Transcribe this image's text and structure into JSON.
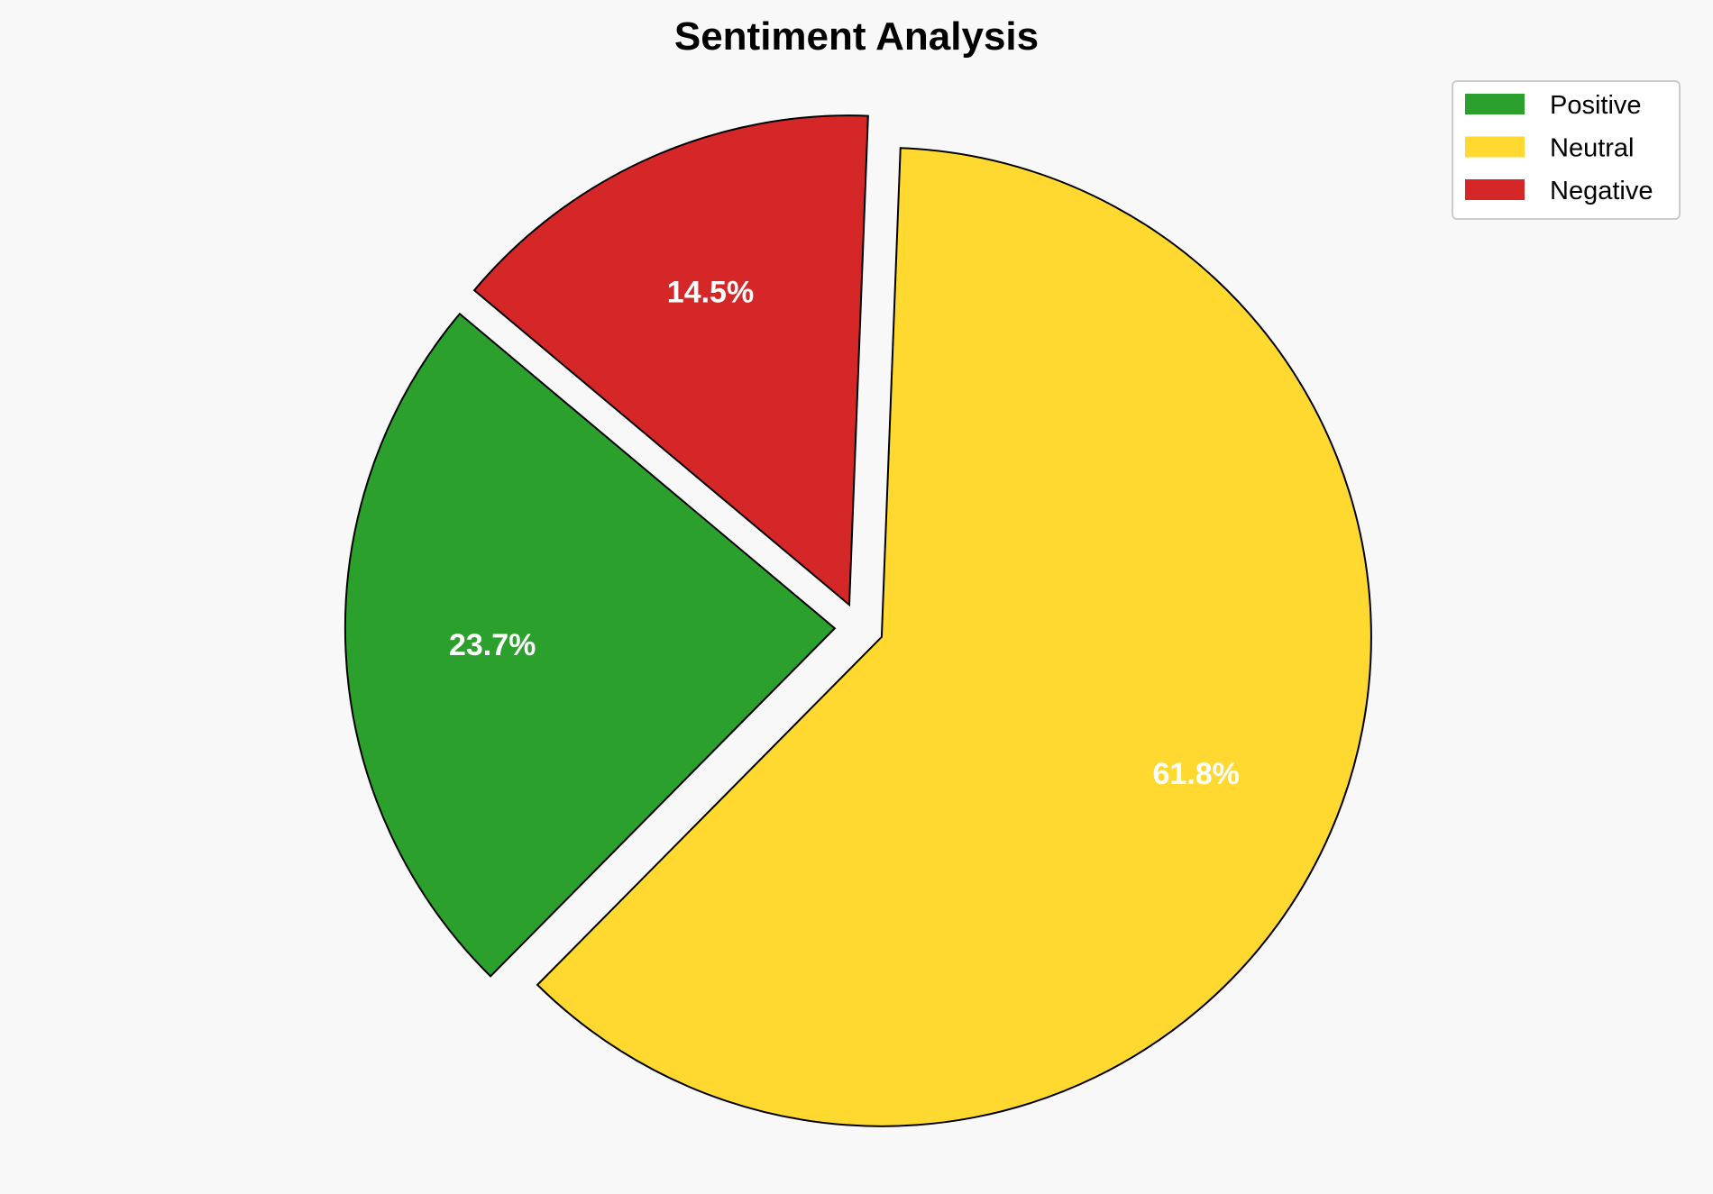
{
  "chart_data": {
    "type": "pie",
    "title": "Sentiment Analysis",
    "categories": [
      "Positive",
      "Neutral",
      "Negative"
    ],
    "values": [
      23.7,
      61.8,
      14.5
    ],
    "labels": [
      "23.7%",
      "61.8%",
      "14.5%"
    ],
    "colors": [
      "#2ca02c",
      "#ffd92f",
      "#d62728"
    ],
    "edge_color": "#000000",
    "start_angle_deg": 140,
    "direction": "counterclockwise",
    "explode": [
      0.05,
      0.05,
      0.05
    ],
    "legend": {
      "placement": "top-right",
      "entries": [
        "Positive",
        "Neutral",
        "Negative"
      ]
    },
    "background": "#f8f8f8"
  }
}
